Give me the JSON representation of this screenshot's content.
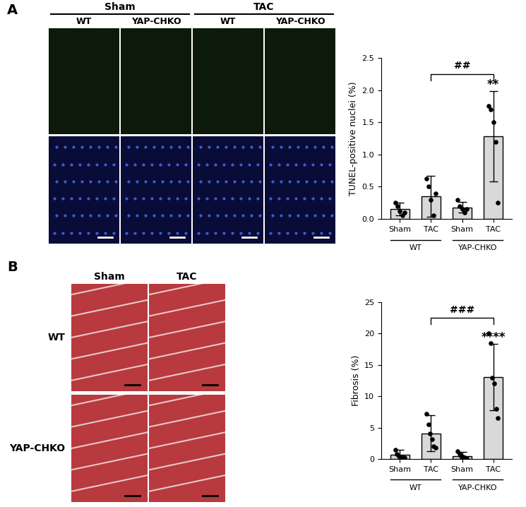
{
  "chart_data": [
    {
      "type": "bar",
      "panel": "A",
      "y_label": "TUNEL-positive nuclei (%)",
      "categories": [
        "Sham",
        "TAC",
        "Sham",
        "TAC"
      ],
      "groups": [
        "WT",
        "WT",
        "YAP-CHKO",
        "YAP-CHKO"
      ],
      "values": [
        0.15,
        0.35,
        0.18,
        1.28
      ],
      "errors": [
        0.1,
        0.32,
        0.08,
        0.7
      ],
      "points": [
        [
          0.25,
          0.2,
          0.12,
          0.05,
          0.1
        ],
        [
          0.62,
          0.5,
          0.3,
          0.05,
          0.4
        ],
        [
          0.3,
          0.2,
          0.15,
          0.1,
          0.15
        ],
        [
          1.75,
          1.7,
          1.5,
          1.2,
          0.25
        ]
      ],
      "color": "#d9d9d9",
      "ylim": [
        0,
        2.5
      ],
      "yticks": [
        {
          "value": 0,
          "label": "0.0"
        },
        0.5,
        {
          "value": 1,
          "label": "1.0"
        },
        1.5,
        {
          "value": 2,
          "label": "2.0"
        },
        2.5
      ],
      "annotations": [
        {
          "text": "**",
          "category": 3
        }
      ],
      "comparisons": [
        {
          "text": "##",
          "between": [
            1,
            3
          ]
        }
      ]
    },
    {
      "type": "bar",
      "panel": "B",
      "y_label": "Fibrosis (%)",
      "categories": [
        "Sham",
        "TAC",
        "Sham",
        "TAC"
      ],
      "groups": [
        "WT",
        "WT",
        "YAP-CHKO",
        "YAP-CHKO"
      ],
      "values": [
        0.7,
        4.1,
        0.5,
        13.1
      ],
      "errors": [
        0.8,
        2.9,
        0.6,
        5.3
      ],
      "points": [
        [
          1.5,
          0.8,
          0.5,
          0.3,
          0.2,
          0.2
        ],
        [
          7.2,
          5.5,
          4.0,
          3.2,
          2.0,
          1.8
        ],
        [
          1.2,
          0.8,
          0.5,
          0.3,
          0.2,
          0.1
        ],
        [
          20.0,
          18.5,
          13.0,
          12.0,
          8.0,
          6.5
        ]
      ],
      "color": "#d9d9d9",
      "ylim": [
        0,
        25
      ],
      "yticks": [
        0,
        5,
        10,
        15,
        20,
        25
      ],
      "annotations": [
        {
          "text": "****",
          "category": 3
        }
      ],
      "comparisons": [
        {
          "text": "###",
          "between": [
            1,
            3
          ]
        }
      ]
    }
  ],
  "figure": {
    "panels": [
      {
        "label": "A",
        "image_groups": [
          {
            "label": "Sham",
            "columns": [
              "WT",
              "YAP-CHKO"
            ]
          },
          {
            "label": "TAC",
            "columns": [
              "WT",
              "YAP-CHKO"
            ]
          }
        ]
      },
      {
        "label": "B",
        "columns": [
          "Sham",
          "TAC"
        ],
        "rows": [
          "WT",
          "YAP-CHKO"
        ]
      }
    ]
  }
}
